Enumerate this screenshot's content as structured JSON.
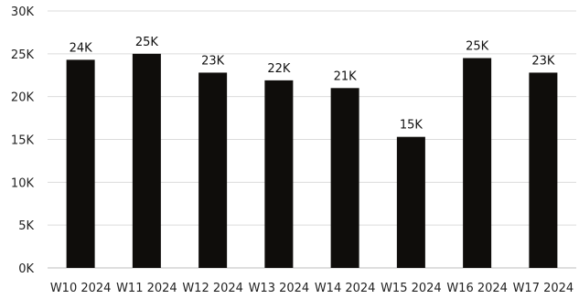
{
  "chart_data": {
    "type": "bar",
    "categories": [
      "W10 2024",
      "W11 2024",
      "W12 2024",
      "W13 2024",
      "W14 2024",
      "W15 2024",
      "W16 2024",
      "W17 2024"
    ],
    "values": [
      24300,
      25000,
      22800,
      21900,
      21000,
      15300,
      24500,
      22800
    ],
    "data_labels": [
      "24K",
      "25K",
      "23K",
      "22K",
      "21K",
      "15K",
      "25K",
      "23K"
    ],
    "ylim": [
      0,
      30000
    ],
    "y_ticks": [
      0,
      5000,
      10000,
      15000,
      20000,
      25000,
      30000
    ],
    "y_tick_labels": [
      "0K",
      "5K",
      "10K",
      "15K",
      "20K",
      "25K",
      "30K"
    ],
    "title": "",
    "xlabel": "",
    "ylabel": "",
    "grid": true,
    "legend": "none",
    "bar_color": "#0f0d0b",
    "grid_color": "#dcdcdc"
  }
}
